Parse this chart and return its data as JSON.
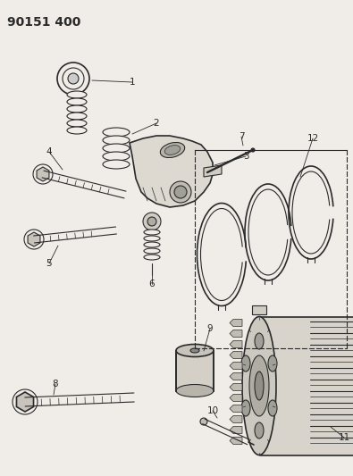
{
  "title": "90151 400",
  "bg_color": "#f0ede8",
  "line_color": "#2a2a2a",
  "label_fontsize": 7.5,
  "title_fontsize": 10,
  "fig_w": 3.95,
  "fig_h": 5.33,
  "dpi": 100
}
